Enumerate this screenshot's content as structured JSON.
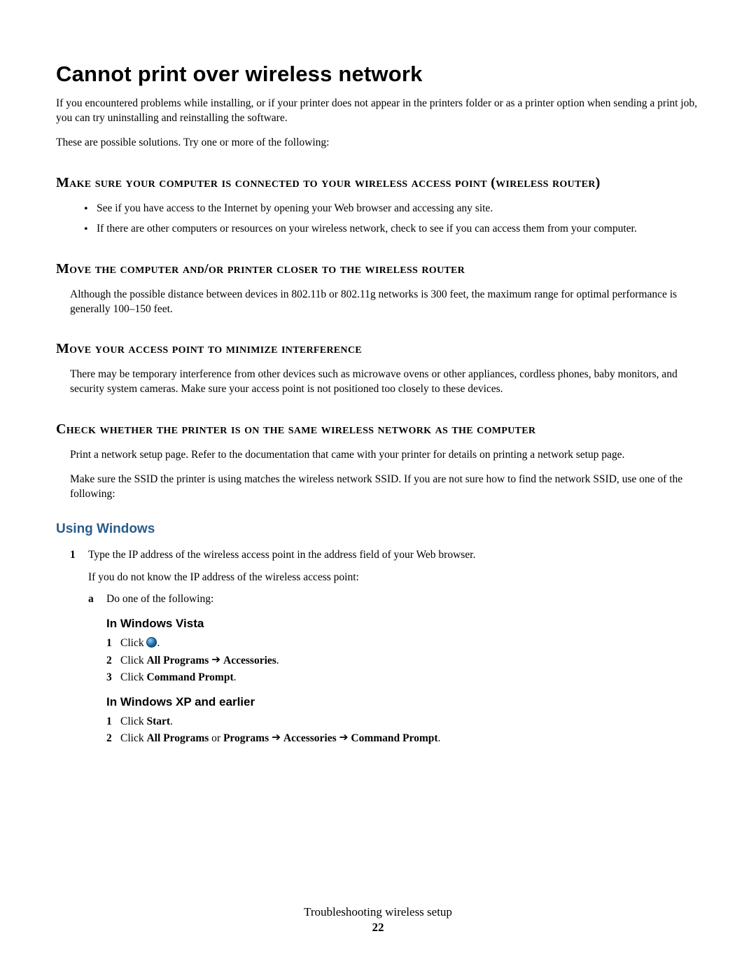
{
  "title": "Cannot print over wireless network",
  "intro1": "If you encountered problems while installing, or if your printer does not appear in the printers folder or as a printer option when sending a print job, you can try uninstalling and reinstalling the software.",
  "intro2": "These are possible solutions. Try one or more of the following:",
  "sec1": {
    "heading": "Make sure your computer is connected to your wireless access point (wireless router)",
    "bullet1": "See if you have access to the Internet by opening your Web browser and accessing any site.",
    "bullet2": "If there are other computers or resources on your wireless network, check to see if you can access them from your computer."
  },
  "sec2": {
    "heading": "Move the computer and/or printer closer to the wireless router",
    "body": "Although the possible distance between devices in 802.11b or 802.11g networks is 300 feet, the maximum range for optimal performance is generally 100–150 feet."
  },
  "sec3": {
    "heading": "Move your access point to minimize interference",
    "body": "There may be temporary interference from other devices such as microwave ovens or other appliances, cordless phones, baby monitors, and security system cameras. Make sure your access point is not positioned too closely to these devices."
  },
  "sec4": {
    "heading": "Check whether the printer is on the same wireless network as the computer",
    "body1": "Print a network setup page. Refer to the documentation that came with your printer for details on printing a network setup page.",
    "body2": "Make sure the SSID the printer is using matches the wireless network SSID. If you are not sure how to find the network SSID, use one of the following:"
  },
  "usingWindows": {
    "heading": "Using Windows",
    "step1": "Type the IP address of the wireless access point in the address field of your Web browser.",
    "sub1": "If you do not know the IP address of the wireless access point:",
    "a": "Do one of the following:",
    "vista": {
      "heading": "In Windows Vista",
      "s1_pre": "Click ",
      "s1_post": ".",
      "s2_pre": "Click ",
      "s2_b1": "All Programs",
      "s2_mid": " ",
      "s2_b2": "Accessories",
      "s2_post": ".",
      "s3_pre": "Click ",
      "s3_b": "Command Prompt",
      "s3_post": "."
    },
    "xp": {
      "heading": "In Windows XP and earlier",
      "s1_pre": "Click ",
      "s1_b": "Start",
      "s1_post": ".",
      "s2_pre": "Click ",
      "s2_b1": "All Programs",
      "s2_mid1": " or ",
      "s2_b2": "Programs",
      "s2_mid2": " ",
      "s2_b3": "Accessories",
      "s2_mid3": " ",
      "s2_b4": "Command Prompt",
      "s2_post": "."
    }
  },
  "footer": {
    "title": "Troubleshooting wireless setup",
    "page": "22"
  },
  "arrow": "➔"
}
